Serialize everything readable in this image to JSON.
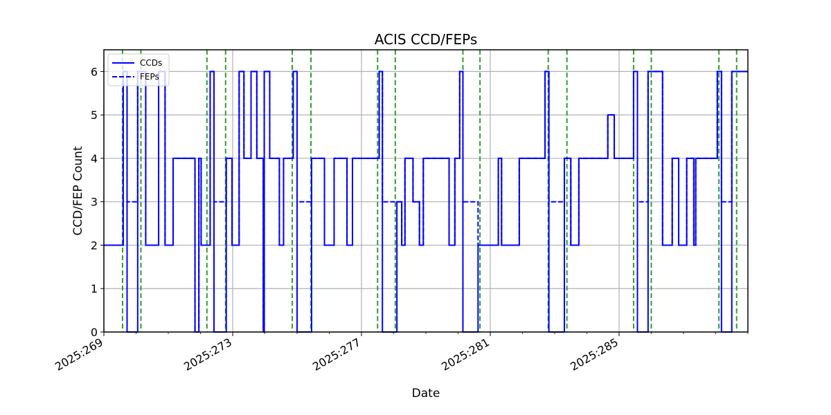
{
  "chart_data": {
    "type": "line",
    "title": "ACIS CCD/FEPs",
    "xlabel": "Date",
    "ylabel": "CCD/FEP Count",
    "x_unit": "day-of-year 2025",
    "xlim": [
      269,
      289
    ],
    "ylim": [
      0,
      6.5
    ],
    "xticks": [
      269,
      273,
      277,
      281,
      285
    ],
    "xtick_labels": [
      "2025:269",
      "2025:273",
      "2025:277",
      "2025:281",
      "2025:285"
    ],
    "yticks": [
      0,
      1,
      2,
      3,
      4,
      5,
      6
    ],
    "ytick_labels": [
      "0",
      "1",
      "2",
      "3",
      "4",
      "5",
      "6"
    ],
    "grid": true,
    "legend": {
      "placement": "upper-left",
      "entries": [
        {
          "label": "CCDs",
          "style": "solid",
          "color": "#0000ff"
        },
        {
          "label": "FEPs",
          "style": "dashed",
          "color": "#0000ff"
        }
      ]
    },
    "series": [
      {
        "name": "CCDs",
        "style": "solid",
        "color": "#0000ff",
        "step_points": [
          [
            269.0,
            2
          ],
          [
            269.6,
            6
          ],
          [
            269.72,
            0
          ],
          [
            270.05,
            6
          ],
          [
            270.3,
            2
          ],
          [
            270.7,
            6
          ],
          [
            270.9,
            2
          ],
          [
            271.15,
            4
          ],
          [
            271.83,
            0
          ],
          [
            271.95,
            4
          ],
          [
            272.02,
            2
          ],
          [
            272.3,
            6
          ],
          [
            272.42,
            0
          ],
          [
            272.8,
            4
          ],
          [
            272.98,
            2
          ],
          [
            273.2,
            6
          ],
          [
            273.35,
            4
          ],
          [
            273.57,
            6
          ],
          [
            273.75,
            4
          ],
          [
            273.95,
            0
          ],
          [
            273.98,
            6
          ],
          [
            274.15,
            4
          ],
          [
            274.45,
            2
          ],
          [
            274.58,
            4
          ],
          [
            274.88,
            6
          ],
          [
            275.0,
            0
          ],
          [
            275.45,
            4
          ],
          [
            275.85,
            2
          ],
          [
            276.15,
            4
          ],
          [
            276.55,
            2
          ],
          [
            276.72,
            4
          ],
          [
            277.55,
            6
          ],
          [
            277.65,
            0
          ],
          [
            278.1,
            3
          ],
          [
            278.25,
            2
          ],
          [
            278.35,
            4
          ],
          [
            278.6,
            3
          ],
          [
            278.8,
            2
          ],
          [
            278.92,
            4
          ],
          [
            279.72,
            2
          ],
          [
            279.9,
            4
          ],
          [
            280.05,
            6
          ],
          [
            280.15,
            0
          ],
          [
            280.62,
            2
          ],
          [
            281.25,
            4
          ],
          [
            281.35,
            2
          ],
          [
            281.9,
            4
          ],
          [
            282.7,
            6
          ],
          [
            282.82,
            0
          ],
          [
            283.3,
            4
          ],
          [
            283.5,
            2
          ],
          [
            283.75,
            4
          ],
          [
            284.65,
            5
          ],
          [
            284.85,
            4
          ],
          [
            285.45,
            6
          ],
          [
            285.57,
            0
          ],
          [
            285.9,
            6
          ],
          [
            286.35,
            2
          ],
          [
            286.65,
            4
          ],
          [
            286.85,
            2
          ],
          [
            287.1,
            4
          ],
          [
            287.32,
            2
          ],
          [
            287.38,
            4
          ],
          [
            288.05,
            6
          ],
          [
            288.18,
            0
          ],
          [
            288.5,
            6
          ],
          [
            289.0,
            6
          ]
        ]
      },
      {
        "name": "FEPs",
        "style": "dashed",
        "color": "#0000ff",
        "step_points": [
          [
            269.0,
            2
          ],
          [
            269.6,
            6
          ],
          [
            269.72,
            3
          ],
          [
            270.05,
            6
          ],
          [
            270.3,
            2
          ],
          [
            270.7,
            6
          ],
          [
            270.9,
            2
          ],
          [
            271.15,
            4
          ],
          [
            271.83,
            0
          ],
          [
            271.95,
            4
          ],
          [
            272.02,
            2
          ],
          [
            272.3,
            6
          ],
          [
            272.42,
            3
          ],
          [
            272.8,
            4
          ],
          [
            272.98,
            2
          ],
          [
            273.2,
            6
          ],
          [
            273.35,
            4
          ],
          [
            273.57,
            6
          ],
          [
            273.75,
            4
          ],
          [
            273.95,
            0
          ],
          [
            273.98,
            6
          ],
          [
            274.15,
            4
          ],
          [
            274.45,
            2
          ],
          [
            274.58,
            4
          ],
          [
            274.88,
            6
          ],
          [
            275.0,
            3
          ],
          [
            275.45,
            4
          ],
          [
            275.85,
            2
          ],
          [
            276.15,
            4
          ],
          [
            276.55,
            2
          ],
          [
            276.72,
            4
          ],
          [
            277.55,
            6
          ],
          [
            277.65,
            3
          ],
          [
            278.1,
            3
          ],
          [
            278.25,
            2
          ],
          [
            278.35,
            4
          ],
          [
            278.6,
            3
          ],
          [
            278.8,
            2
          ],
          [
            278.92,
            4
          ],
          [
            279.72,
            2
          ],
          [
            279.9,
            4
          ],
          [
            280.05,
            6
          ],
          [
            280.15,
            3
          ],
          [
            280.62,
            2
          ],
          [
            281.25,
            4
          ],
          [
            281.35,
            2
          ],
          [
            281.9,
            4
          ],
          [
            282.7,
            6
          ],
          [
            282.82,
            3
          ],
          [
            283.3,
            4
          ],
          [
            283.5,
            2
          ],
          [
            283.75,
            4
          ],
          [
            284.65,
            5
          ],
          [
            284.85,
            4
          ],
          [
            285.45,
            6
          ],
          [
            285.57,
            3
          ],
          [
            285.9,
            6
          ],
          [
            286.35,
            2
          ],
          [
            286.65,
            4
          ],
          [
            286.85,
            2
          ],
          [
            287.1,
            4
          ],
          [
            287.32,
            2
          ],
          [
            287.38,
            4
          ],
          [
            288.05,
            6
          ],
          [
            288.18,
            3
          ],
          [
            288.5,
            6
          ],
          [
            289.0,
            6
          ]
        ]
      }
    ],
    "vertical_markers": {
      "color": "#2ca02c",
      "style": "dashed",
      "x": [
        269.58,
        270.15,
        272.2,
        272.78,
        274.85,
        275.43,
        277.5,
        278.05,
        280.15,
        280.68,
        282.8,
        283.38,
        285.45,
        286.0,
        288.1,
        288.65
      ]
    },
    "colors": {
      "series": "#0000ff",
      "markers": "#2ca02c",
      "grid": "#b0b0b0",
      "axes": "#000000"
    }
  }
}
